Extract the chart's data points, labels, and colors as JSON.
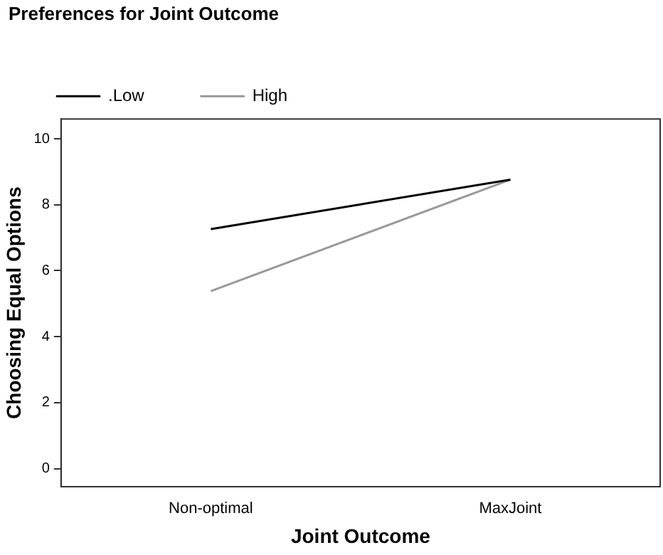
{
  "chart_data": {
    "type": "line",
    "xlabel": "Joint Outcome",
    "ylabel": "Choosing Equal Options",
    "legend_title": "Preferences for Joint Outcome",
    "categories": [
      "Non-optimal",
      "MaxJoint"
    ],
    "series": [
      {
        "name": ".Low",
        "color": "#000000",
        "values": [
          7.26,
          8.76
        ]
      },
      {
        "name": "High",
        "color": "#999999",
        "values": [
          5.38,
          8.76
        ]
      }
    ],
    "ylim": [
      -0.55,
      10.6
    ],
    "yticks": [
      0,
      2,
      4,
      6,
      8,
      10
    ],
    "grid": false,
    "legend": "top left",
    "marker": "none",
    "line_style": "solid"
  }
}
